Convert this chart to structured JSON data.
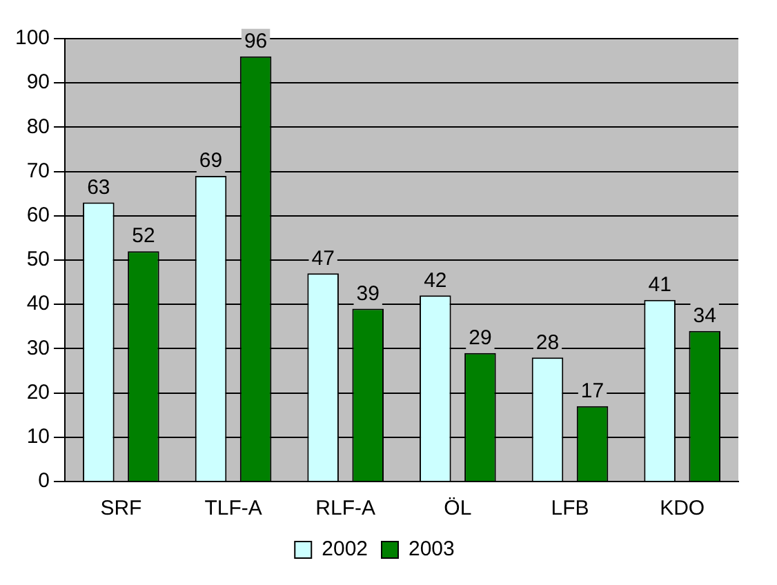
{
  "chart_data": {
    "type": "bar",
    "categories": [
      "SRF",
      "TLF-A",
      "RLF-A",
      "ÖL",
      "LFB",
      "KDO"
    ],
    "series": [
      {
        "name": "2002",
        "color": "#ccffff",
        "values": [
          63,
          69,
          47,
          42,
          28,
          41
        ]
      },
      {
        "name": "2003",
        "color": "#008000",
        "values": [
          52,
          96,
          39,
          29,
          17,
          34
        ]
      }
    ],
    "ylim": [
      0,
      100
    ],
    "yticks": [
      0,
      10,
      20,
      30,
      40,
      50,
      60,
      70,
      80,
      90,
      100
    ],
    "grid": "y",
    "legend": "bottom",
    "data_labels": true
  }
}
